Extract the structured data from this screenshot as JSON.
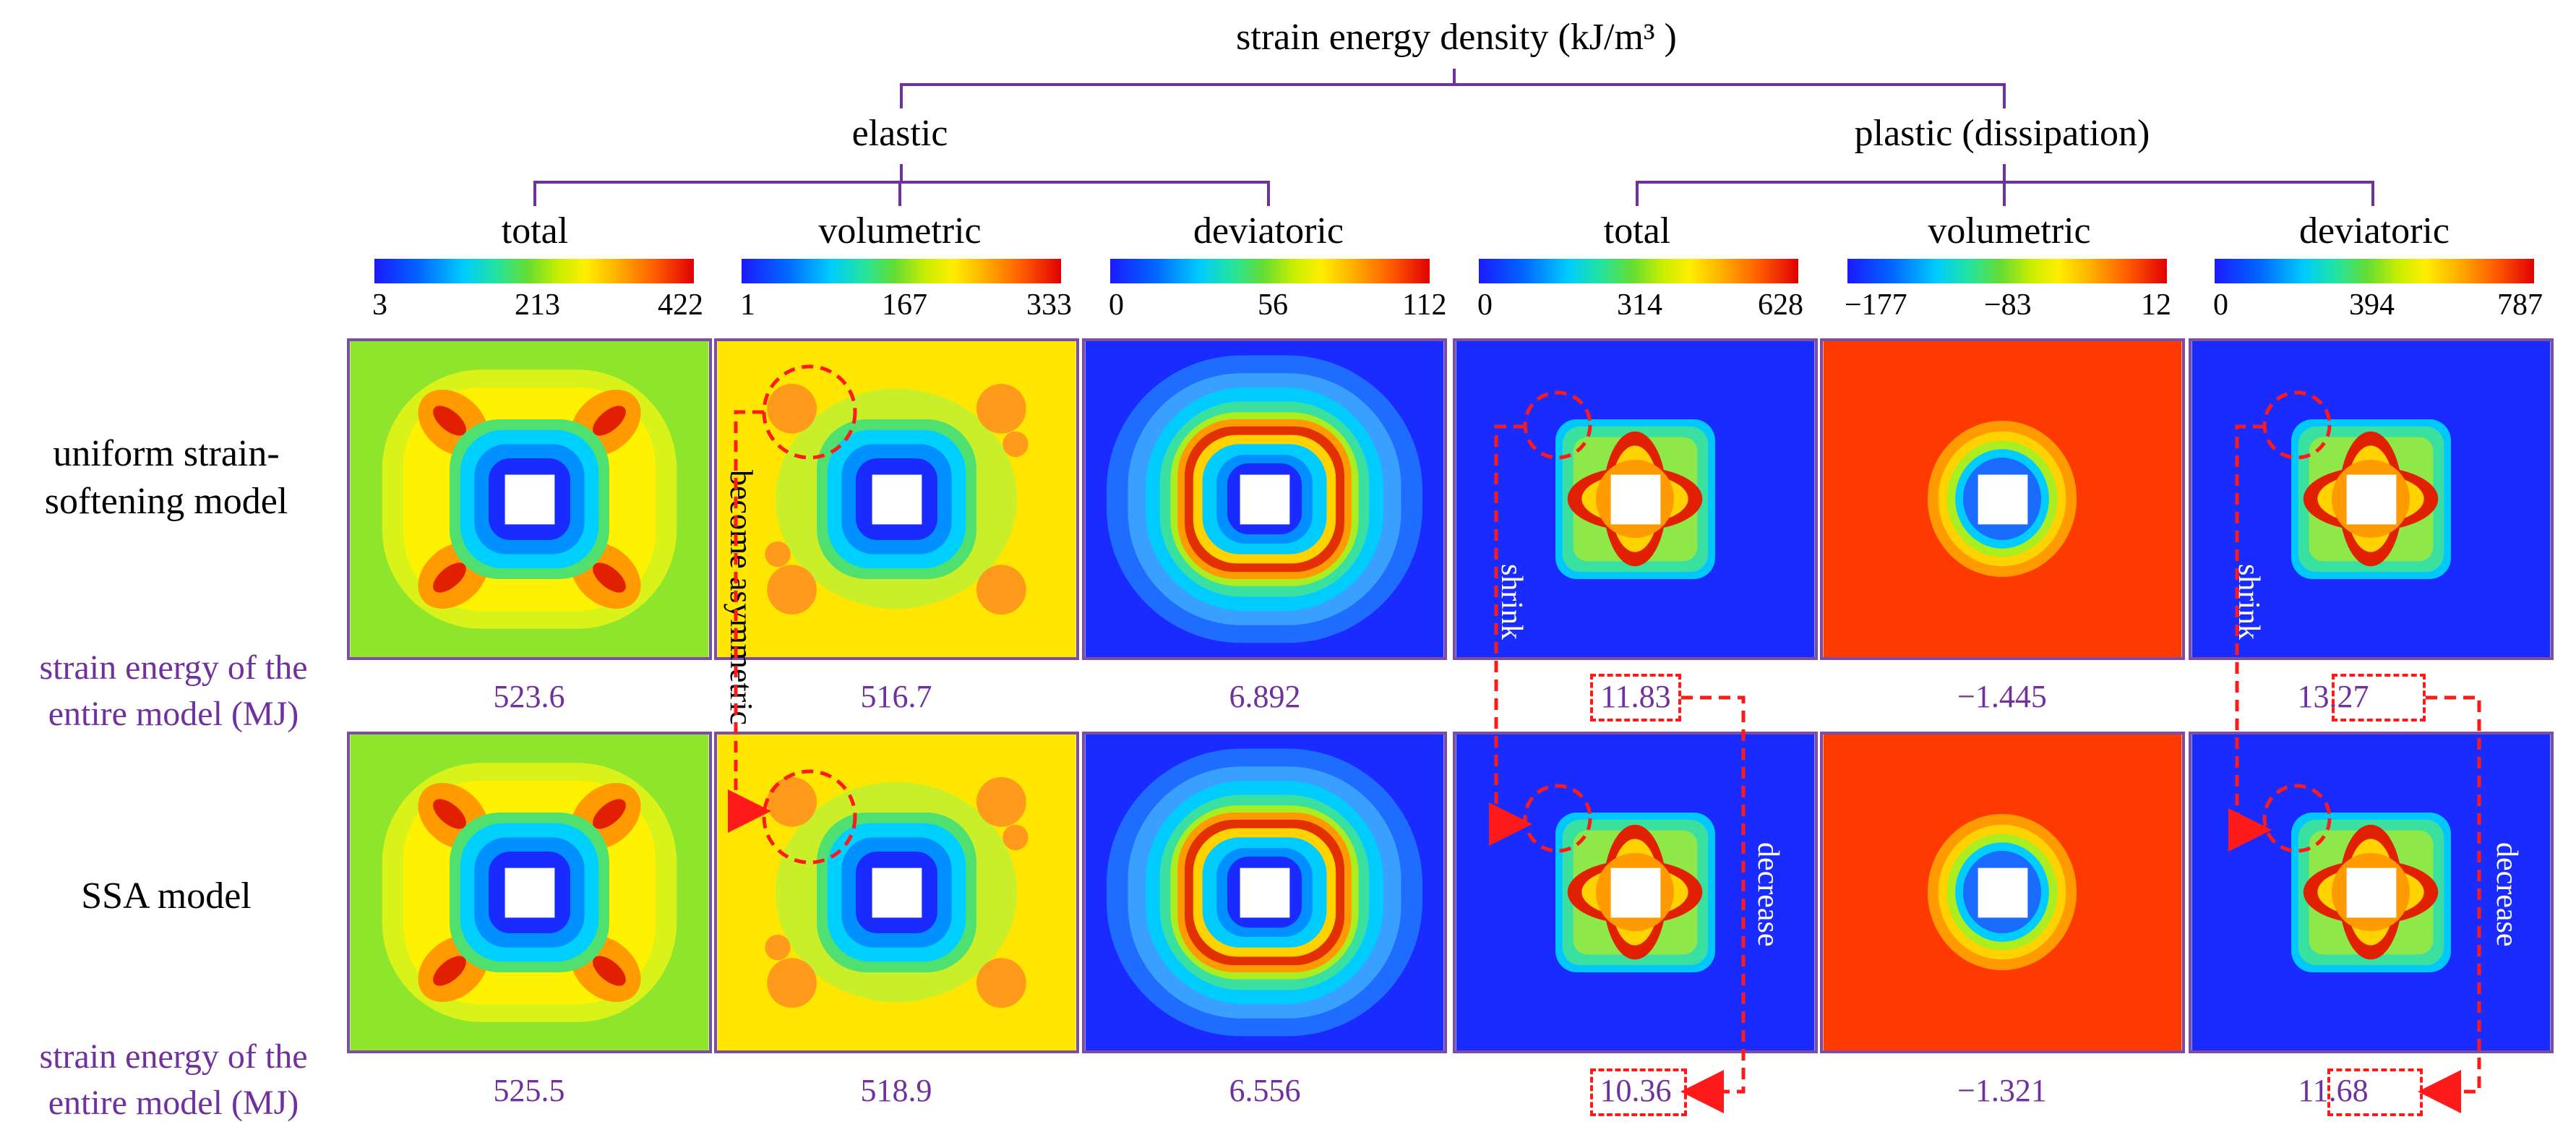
{
  "title": "strain energy density (kJ/m³ )",
  "groups": {
    "elastic": "elastic",
    "plastic": "plastic (dissipation)"
  },
  "columns": [
    {
      "label": "total",
      "ticks": [
        "3",
        "213",
        "422"
      ]
    },
    {
      "label": "volumetric",
      "ticks": [
        "1",
        "167",
        "333"
      ]
    },
    {
      "label": "deviatoric",
      "ticks": [
        "0",
        "56",
        "112"
      ]
    },
    {
      "label": "total",
      "ticks": [
        "0",
        "314",
        "628"
      ]
    },
    {
      "label": "volumetric",
      "ticks": [
        "−177",
        "−83",
        "12"
      ]
    },
    {
      "label": "deviatoric",
      "ticks": [
        "0",
        "394",
        "787"
      ]
    }
  ],
  "rows": [
    {
      "label": "uniform strain-softening model",
      "values": [
        "523.6",
        "516.7",
        "6.892",
        "11.83",
        "−1.445",
        "13.27"
      ]
    },
    {
      "label": "SSA model",
      "values": [
        "525.5",
        "518.9",
        "6.556",
        "10.36",
        "−1.321",
        "11.68"
      ]
    }
  ],
  "energy_label": "strain energy of the entire model (MJ)",
  "annotations": {
    "asymmetric": "become asymmetric",
    "shrink": "shrink",
    "decrease": "decrease"
  },
  "colors": {
    "accent": "#7030A0",
    "highlight": "#ff1a1a"
  }
}
